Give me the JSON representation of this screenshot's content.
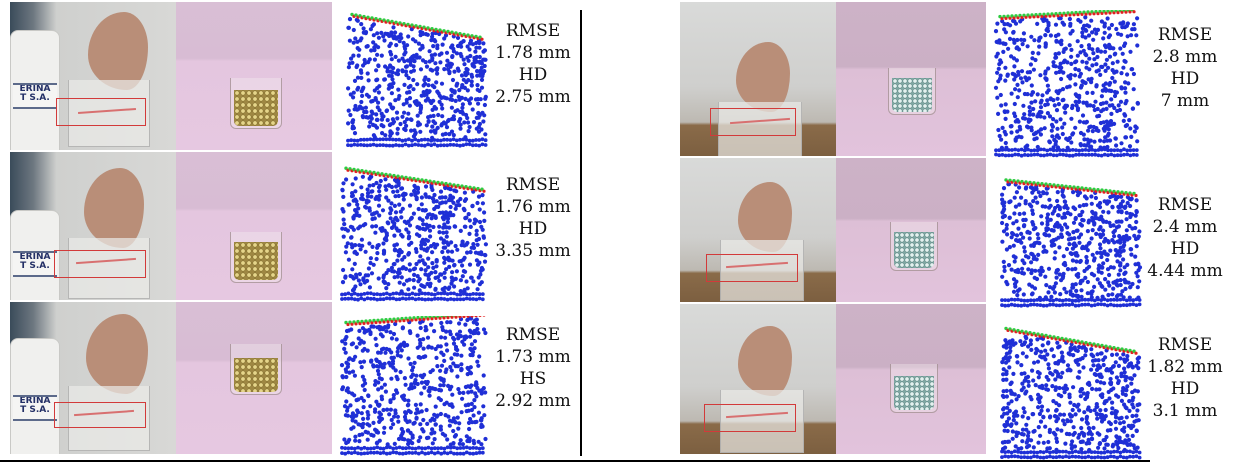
{
  "left_panel": {
    "rows": [
      {
        "rmse_label": "RMSE",
        "rmse_value": "1.78 mm",
        "second_label": "HD",
        "second_value": "2.75 mm"
      },
      {
        "rmse_label": "RMSE",
        "rmse_value": "1.76 mm",
        "second_label": "HD",
        "second_value": "3.35 mm"
      },
      {
        "rmse_label": "RMSE",
        "rmse_value": "1.73 mm",
        "second_label": "HS",
        "second_value": "2.92 mm"
      }
    ],
    "bottle_label_lines": [
      "ERINA",
      "T S.A."
    ],
    "grain_color": "#b9a54e"
  },
  "right_panel": {
    "rows": [
      {
        "rmse_label": "RMSE",
        "rmse_value": "2.8 mm",
        "second_label": "HD",
        "second_value": "7 mm"
      },
      {
        "rmse_label": "RMSE",
        "rmse_value": "2.4 mm",
        "second_label": "HD",
        "second_value": "4.44 mm"
      },
      {
        "rmse_label": "RMSE",
        "rmse_value": "1.82 mm",
        "second_label": "HD",
        "second_value": "3.1 mm"
      }
    ],
    "grain_color": "#8fb9b5"
  },
  "colors": {
    "point_cloud": "#1f2fd6",
    "surface_red": "#e02020",
    "surface_green": "#2ecc40",
    "sim_background": "#e6c8e1",
    "roi_box": "#d23a3a"
  }
}
